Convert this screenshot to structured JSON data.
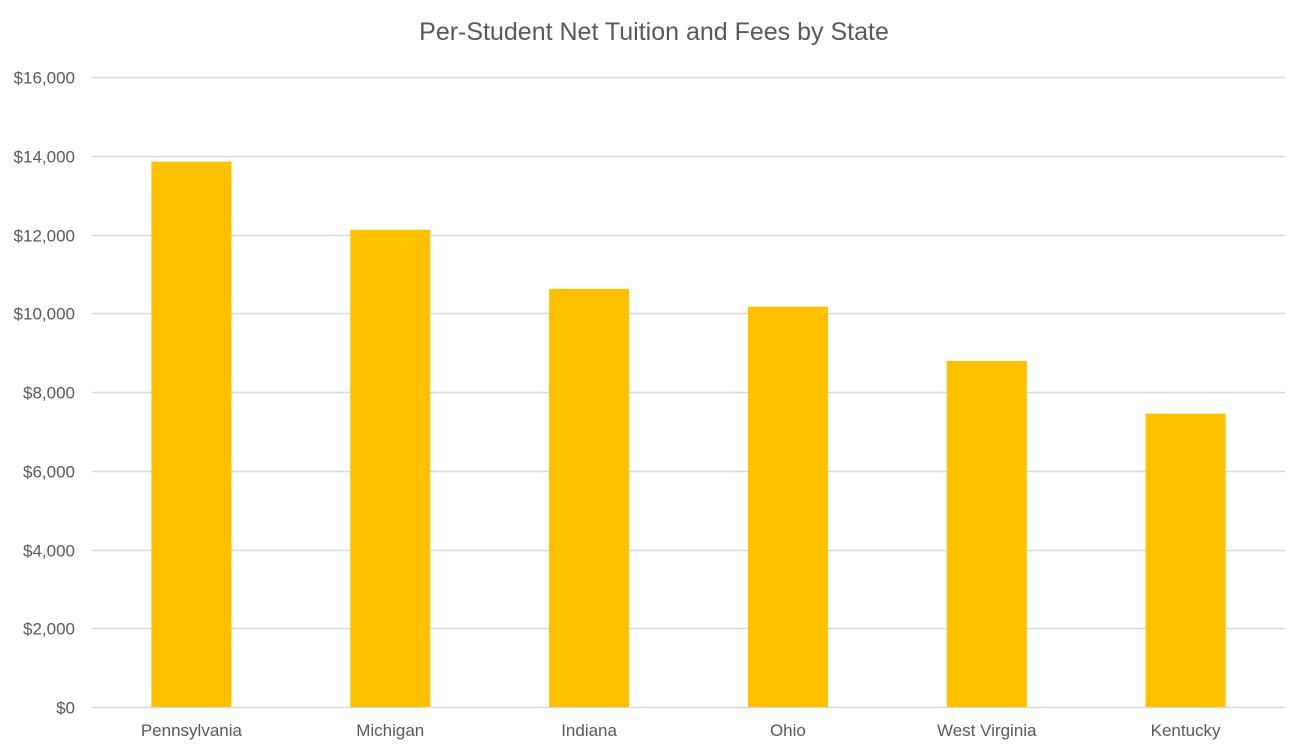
{
  "chart_data": {
    "type": "bar",
    "title": "Per-Student Net Tuition and Fees by State",
    "xlabel": "",
    "ylabel": "",
    "categories": [
      "Pennsylvania",
      "Michigan",
      "Indiana",
      "Ohio",
      "West Virginia",
      "Kentucky"
    ],
    "values": [
      13850,
      12120,
      10620,
      10170,
      8790,
      7450
    ],
    "ylim": [
      0,
      16000
    ],
    "yticks": [
      0,
      2000,
      4000,
      6000,
      8000,
      10000,
      12000,
      14000,
      16000
    ],
    "ytick_labels": [
      "$0",
      "$2,000",
      "$4,000",
      "$6,000",
      "$8,000",
      "$10,000",
      "$12,000",
      "$14,000",
      "$16,000"
    ],
    "grid": true,
    "legend": "none",
    "colors": {
      "bar": "#FFC000",
      "grid": "#D9D9D9",
      "text": "#595959"
    }
  }
}
